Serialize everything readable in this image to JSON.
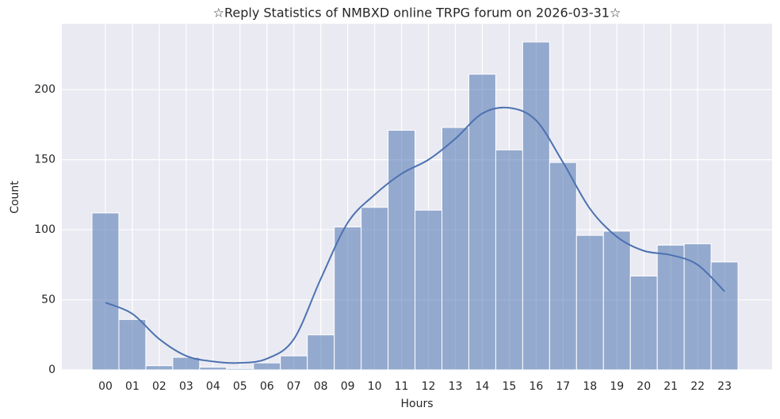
{
  "chart_data": {
    "type": "histogram",
    "title": "☆Reply Statistics of NMBXD online TRPG forum on 2026-03-31☆",
    "xlabel": "Hours",
    "ylabel": "Count",
    "categories": [
      "00",
      "01",
      "02",
      "03",
      "04",
      "05",
      "06",
      "07",
      "08",
      "09",
      "10",
      "11",
      "12",
      "13",
      "14",
      "15",
      "16",
      "17",
      "18",
      "19",
      "20",
      "21",
      "22",
      "23"
    ],
    "series": [
      {
        "name": "Count",
        "color": "#4c72b0",
        "values": [
          112,
          36,
          3,
          9,
          2,
          1,
          5,
          10,
          25,
          102,
          116,
          171,
          114,
          173,
          211,
          157,
          234,
          148,
          96,
          99,
          67,
          89,
          90,
          77
        ]
      },
      {
        "name": "KDE",
        "color": "#4c72b0",
        "values": [
          48,
          40,
          22,
          10,
          6,
          5,
          8,
          22,
          65,
          105,
          125,
          140,
          150,
          165,
          183,
          187,
          178,
          148,
          115,
          95,
          85,
          82,
          75,
          56
        ]
      }
    ],
    "ylim": [
      0,
      247
    ],
    "yticks": [
      0,
      50,
      100,
      150,
      200
    ],
    "grid": true
  }
}
